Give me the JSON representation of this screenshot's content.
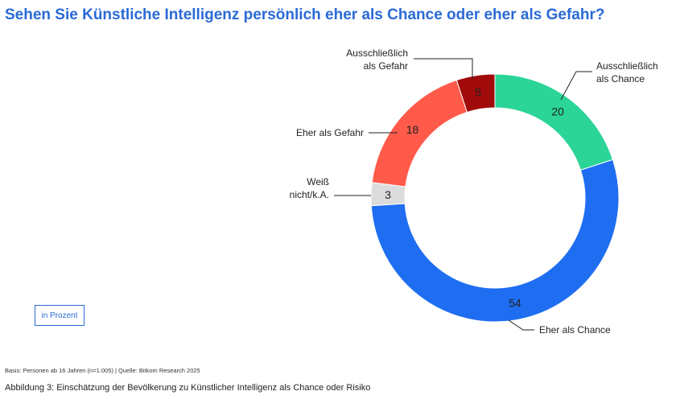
{
  "title": "Sehen Sie Künstliche Intelligenz persönlich eher als Chance oder eher als Gefahr?",
  "unit_label": "in Prozent",
  "basis": "Basis: Personen ab 16 Jahren (n=1.005) | Quelle: Bitkom Research 2025",
  "caption": "Abbildung 3: Einschätzung der Bevölkerung zu Künstlicher Intelligenz als Chance oder Risiko",
  "chart_data": {
    "type": "pie",
    "donut": true,
    "title": "Sehen Sie Künstliche Intelligenz persönlich eher als Chance oder eher als Gefahr?",
    "unit": "in Prozent",
    "slices": [
      {
        "key": "ausschliesslich-chance",
        "label_lines": [
          "Ausschließlich",
          "als Chance"
        ],
        "value": 20,
        "color": "#2bd497"
      },
      {
        "key": "eher-chance",
        "label_lines": [
          "Eher als Chance"
        ],
        "value": 54,
        "color": "#1f6ef2"
      },
      {
        "key": "weiss-nicht",
        "label_lines": [
          "Weiß",
          "nicht/k.A."
        ],
        "value": 3,
        "color": "#dcdcdc"
      },
      {
        "key": "eher-gefahr",
        "label_lines": [
          "Eher als Gefahr"
        ],
        "value": 18,
        "color": "#ff5a4a"
      },
      {
        "key": "ausschliesslich-gefahr",
        "label_lines": [
          "Ausschließlich",
          "als Gefahr"
        ],
        "value": 5,
        "color": "#a10a0a"
      }
    ]
  }
}
